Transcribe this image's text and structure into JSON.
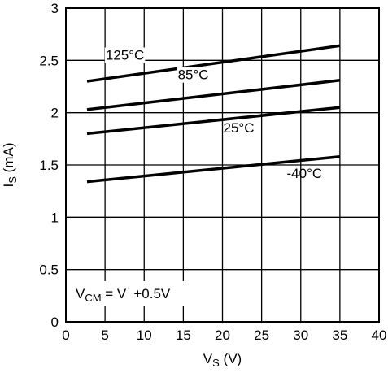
{
  "chart_data": {
    "type": "line",
    "xlabel": {
      "main": "V",
      "sub": "S",
      "unit": " (V)"
    },
    "ylabel": {
      "main": "I",
      "sub": "S",
      "unit": " (mA)"
    },
    "xlim": [
      0,
      40
    ],
    "ylim": [
      0,
      3
    ],
    "x_ticks": [
      0,
      5,
      10,
      15,
      20,
      25,
      30,
      35,
      40
    ],
    "y_ticks": [
      0,
      0.5,
      1,
      1.5,
      2,
      2.5,
      3
    ],
    "x_tick_labels": [
      "0",
      "5",
      "10",
      "15",
      "20",
      "25",
      "30",
      "35",
      "40"
    ],
    "y_tick_labels": [
      "0",
      "0.5",
      "1",
      "1.5",
      "2",
      "2.5",
      "3"
    ],
    "grid": true,
    "legend": "none",
    "annotation": {
      "main": "V",
      "sub": "CM",
      "eq": " = V",
      "sup": "-",
      "rest": " +0.5V"
    },
    "x": [
      2.7,
      35
    ],
    "series": [
      {
        "name": "125°C",
        "values": [
          2.3,
          2.64
        ]
      },
      {
        "name": "85°C",
        "values": [
          2.03,
          2.31
        ]
      },
      {
        "name": "25°C",
        "values": [
          1.8,
          2.05
        ]
      },
      {
        "name": "-40°C",
        "values": [
          1.34,
          1.58
        ]
      }
    ]
  }
}
